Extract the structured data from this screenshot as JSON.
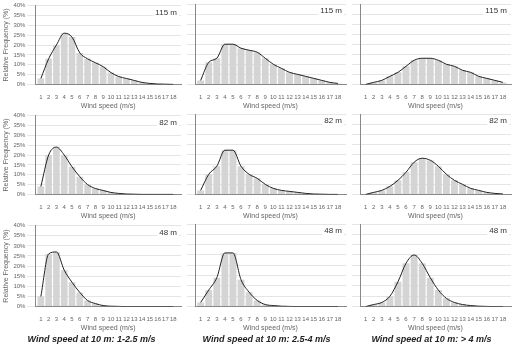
{
  "chart_data": [
    {
      "type": "bar",
      "x": [
        1,
        2,
        3,
        4,
        5,
        6,
        7,
        8,
        9,
        10,
        11,
        12,
        13,
        14,
        15,
        16,
        17,
        18
      ],
      "series": [
        {
          "type": "bar",
          "color": "#d4d4d4",
          "values": [
            3,
            13,
            20,
            26,
            24,
            16,
            13,
            11,
            9,
            6,
            4,
            3,
            2,
            1,
            0.5,
            0.2,
            0.1,
            0
          ]
        },
        {
          "type": "line",
          "color": "#222222",
          "values": [
            3,
            13,
            20,
            26,
            24,
            16,
            13,
            11,
            9,
            6,
            4,
            3,
            2,
            1,
            0.5,
            0.2,
            0.1,
            0
          ]
        }
      ],
      "xlabel": "Wind speed (m/s)",
      "ylabel": "Relative Frequency (%)",
      "annotations": [
        "115 m"
      ],
      "xlim": [
        0.3,
        19.0
      ],
      "xticks": [
        1,
        2,
        3,
        4,
        5,
        6,
        7,
        8,
        9,
        10,
        11,
        12,
        13,
        14,
        15,
        16,
        17,
        18
      ],
      "ylim": [
        0,
        40
      ],
      "yticks": [
        {
          "value": 0,
          "label": "0%"
        },
        {
          "value": 5,
          "label": "5%"
        },
        {
          "value": 10,
          "label": "10%"
        },
        {
          "value": 15,
          "label": "15%"
        },
        {
          "value": 20,
          "label": "20%"
        },
        {
          "value": 25,
          "label": "25%"
        },
        {
          "value": 30,
          "label": "30%"
        },
        {
          "value": 35,
          "label": "35%"
        },
        {
          "value": 40,
          "label": "40%"
        }
      ],
      "grid": true
    },
    {
      "type": "bar",
      "x": [
        1,
        2,
        3,
        4,
        5,
        6,
        7,
        8,
        9,
        10,
        11,
        12,
        13,
        14,
        15,
        16,
        17,
        18
      ],
      "series": [
        {
          "type": "bar",
          "color": "#d4d4d4",
          "values": [
            2,
            11,
            13,
            20,
            20,
            18,
            17,
            16,
            13,
            10,
            8,
            6,
            5,
            4,
            3,
            2,
            1,
            0.5
          ]
        },
        {
          "type": "line",
          "color": "#222222",
          "values": [
            2,
            11,
            13,
            20,
            20,
            18,
            17,
            16,
            13,
            10,
            8,
            6,
            5,
            4,
            3,
            2,
            1,
            0.5
          ]
        }
      ],
      "xlabel": "Wind speed (m/s)",
      "annotations": [
        "115 m"
      ],
      "xlim": [
        0.3,
        19.0
      ],
      "xticks": [
        1,
        2,
        3,
        4,
        5,
        6,
        7,
        8,
        9,
        10,
        11,
        12,
        13,
        14,
        15,
        16,
        17,
        18
      ],
      "ylim": [
        0,
        40
      ],
      "yticks": [
        0,
        5,
        10,
        15,
        20,
        25,
        30,
        35,
        40
      ],
      "grid": true,
      "tick_labels": "x"
    },
    {
      "type": "bar",
      "x": [
        1,
        2,
        3,
        4,
        5,
        6,
        7,
        8,
        9,
        10,
        11,
        12,
        13,
        14,
        15,
        16,
        17,
        18
      ],
      "series": [
        {
          "type": "bar",
          "color": "#d4d4d4",
          "values": [
            0,
            1,
            2,
            4,
            6,
            9,
            12,
            13,
            13,
            12,
            10,
            9,
            7,
            6,
            4,
            3,
            2,
            1
          ]
        },
        {
          "type": "line",
          "color": "#222222",
          "values": [
            0,
            1,
            2,
            4,
            6,
            9,
            12,
            13,
            13,
            12,
            10,
            9,
            7,
            6,
            4,
            3,
            2,
            1
          ]
        }
      ],
      "xlabel": "Wind speed (m/s)",
      "annotations": [
        "115 m"
      ],
      "xlim": [
        0.3,
        19.0
      ],
      "xticks": [
        1,
        2,
        3,
        4,
        5,
        6,
        7,
        8,
        9,
        10,
        11,
        12,
        13,
        14,
        15,
        16,
        17,
        18
      ],
      "ylim": [
        0,
        40
      ],
      "yticks": [
        0,
        5,
        10,
        15,
        20,
        25,
        30,
        35,
        40
      ],
      "grid": true,
      "tick_labels": "x"
    },
    {
      "type": "bar",
      "x": [
        1,
        2,
        3,
        4,
        5,
        6,
        7,
        8,
        9,
        10,
        11,
        12,
        13,
        14,
        15,
        16,
        17,
        18
      ],
      "series": [
        {
          "type": "bar",
          "color": "#d4d4d4",
          "values": [
            4,
            20,
            24,
            20,
            14,
            9,
            5,
            3,
            2,
            1,
            0.5,
            0.2,
            0.1,
            0,
            0,
            0,
            0,
            0
          ]
        },
        {
          "type": "line",
          "color": "#222222",
          "values": [
            4,
            20,
            24,
            20,
            14,
            9,
            5,
            3,
            2,
            1,
            0.5,
            0.2,
            0.1,
            0,
            0,
            0,
            0,
            0
          ]
        }
      ],
      "xlabel": "Wind speed (m/s)",
      "ylabel": "Relative Frequency (%)",
      "annotations": [
        "82 m"
      ],
      "xlim": [
        0.3,
        19.0
      ],
      "xticks": [
        1,
        2,
        3,
        4,
        5,
        6,
        7,
        8,
        9,
        10,
        11,
        12,
        13,
        14,
        15,
        16,
        17,
        18
      ],
      "ylim": [
        0,
        40
      ],
      "yticks": [
        {
          "value": 0,
          "label": "0%"
        },
        {
          "value": 5,
          "label": "5%"
        },
        {
          "value": 10,
          "label": "10%"
        },
        {
          "value": 15,
          "label": "15%"
        },
        {
          "value": 20,
          "label": "20%"
        },
        {
          "value": 25,
          "label": "25%"
        },
        {
          "value": 30,
          "label": "30%"
        },
        {
          "value": 35,
          "label": "35%"
        },
        {
          "value": 40,
          "label": "40%"
        }
      ],
      "grid": true
    },
    {
      "type": "bar",
      "x": [
        1,
        2,
        3,
        4,
        5,
        6,
        7,
        8,
        9,
        10,
        11,
        12,
        13,
        14,
        15,
        16,
        17,
        18
      ],
      "series": [
        {
          "type": "bar",
          "color": "#d4d4d4",
          "values": [
            2,
            10,
            14,
            22,
            22,
            14,
            10,
            8,
            5,
            3,
            2,
            1.5,
            1,
            0.5,
            0.2,
            0.1,
            0,
            0
          ]
        },
        {
          "type": "line",
          "color": "#222222",
          "values": [
            2,
            10,
            14,
            22,
            22,
            14,
            10,
            8,
            5,
            3,
            2,
            1.5,
            1,
            0.5,
            0.2,
            0.1,
            0,
            0
          ]
        }
      ],
      "xlabel": "Wind speed (m/s)",
      "annotations": [
        "82 m"
      ],
      "xlim": [
        0.3,
        19.0
      ],
      "xticks": [
        1,
        2,
        3,
        4,
        5,
        6,
        7,
        8,
        9,
        10,
        11,
        12,
        13,
        14,
        15,
        16,
        17,
        18
      ],
      "ylim": [
        0,
        40
      ],
      "yticks": [
        0,
        5,
        10,
        15,
        20,
        25,
        30,
        35,
        40
      ],
      "grid": true,
      "tick_labels": "x"
    },
    {
      "type": "bar",
      "x": [
        1,
        2,
        3,
        4,
        5,
        6,
        7,
        8,
        9,
        10,
        11,
        12,
        13,
        14,
        15,
        16,
        17,
        18
      ],
      "series": [
        {
          "type": "bar",
          "color": "#d4d4d4",
          "values": [
            0,
            1,
            2,
            4,
            7,
            11,
            16,
            18,
            17,
            14,
            10,
            7,
            5,
            3,
            2,
            1,
            0.5,
            0.2
          ]
        },
        {
          "type": "line",
          "color": "#222222",
          "values": [
            0,
            1,
            2,
            4,
            7,
            11,
            16,
            18,
            17,
            14,
            10,
            7,
            5,
            3,
            2,
            1,
            0.5,
            0.2
          ]
        }
      ],
      "xlabel": "Wind speed (m/s)",
      "annotations": [
        "82 m"
      ],
      "xlim": [
        0.3,
        19.0
      ],
      "xticks": [
        1,
        2,
        3,
        4,
        5,
        6,
        7,
        8,
        9,
        10,
        11,
        12,
        13,
        14,
        15,
        16,
        17,
        18
      ],
      "ylim": [
        0,
        40
      ],
      "yticks": [
        0,
        5,
        10,
        15,
        20,
        25,
        30,
        35,
        40
      ],
      "grid": true,
      "tick_labels": "x"
    },
    {
      "type": "bar",
      "x": [
        1,
        2,
        3,
        4,
        5,
        6,
        7,
        8,
        9,
        10,
        11,
        12,
        13,
        14,
        15,
        16,
        17,
        18
      ],
      "series": [
        {
          "type": "bar",
          "color": "#d4d4d4",
          "values": [
            5,
            26,
            27,
            18,
            12,
            7,
            3,
            1.5,
            0.5,
            0.2,
            0.1,
            0,
            0,
            0,
            0,
            0,
            0,
            0
          ]
        },
        {
          "type": "line",
          "color": "#222222",
          "values": [
            5,
            26,
            27,
            18,
            12,
            7,
            3,
            1.5,
            0.5,
            0.2,
            0.1,
            0,
            0,
            0,
            0,
            0,
            0,
            0
          ]
        }
      ],
      "xlabel": "Wind speed (m/s)",
      "ylabel": "Relative Frequency (%)",
      "annotations": [
        "48 m"
      ],
      "subtitle": "Wind speed at 10 m: 1-2.5 m/s",
      "xlim": [
        0.3,
        19.0
      ],
      "xticks": [
        1,
        2,
        3,
        4,
        5,
        6,
        7,
        8,
        9,
        10,
        11,
        12,
        13,
        14,
        15,
        16,
        17,
        18
      ],
      "ylim": [
        0,
        40
      ],
      "yticks": [
        {
          "value": 0,
          "label": "0%"
        },
        {
          "value": 5,
          "label": "5%"
        },
        {
          "value": 10,
          "label": "10%"
        },
        {
          "value": 15,
          "label": "15%"
        },
        {
          "value": 20,
          "label": "20%"
        },
        {
          "value": 25,
          "label": "25%"
        },
        {
          "value": 30,
          "label": "30%"
        },
        {
          "value": 35,
          "label": "35%"
        },
        {
          "value": 40,
          "label": "40%"
        }
      ],
      "grid": true
    },
    {
      "type": "bar",
      "x": [
        1,
        2,
        3,
        4,
        5,
        6,
        7,
        8,
        9,
        10,
        11,
        12,
        13,
        14,
        15,
        16,
        17,
        18
      ],
      "series": [
        {
          "type": "bar",
          "color": "#d4d4d4",
          "values": [
            2,
            8,
            14,
            26,
            26,
            13,
            7,
            3,
            1,
            0.5,
            0.2,
            0.1,
            0,
            0,
            0,
            0,
            0,
            0
          ]
        },
        {
          "type": "line",
          "color": "#222222",
          "values": [
            2,
            8,
            14,
            26,
            26,
            13,
            7,
            3,
            1,
            0.5,
            0.2,
            0.1,
            0,
            0,
            0,
            0,
            0,
            0
          ]
        }
      ],
      "xlabel": "Wind speed (m/s)",
      "annotations": [
        "48 m"
      ],
      "subtitle": "Wind speed at 10 m: 2.5-4 m/s",
      "xlim": [
        0.3,
        19.0
      ],
      "xticks": [
        1,
        2,
        3,
        4,
        5,
        6,
        7,
        8,
        9,
        10,
        11,
        12,
        13,
        14,
        15,
        16,
        17,
        18
      ],
      "ylim": [
        0,
        40
      ],
      "yticks": [
        0,
        5,
        10,
        15,
        20,
        25,
        30,
        35,
        40
      ],
      "grid": true,
      "tick_labels": "x"
    },
    {
      "type": "bar",
      "x": [
        1,
        2,
        3,
        4,
        5,
        6,
        7,
        8,
        9,
        10,
        11,
        12,
        13,
        14,
        15,
        16,
        17,
        18
      ],
      "series": [
        {
          "type": "bar",
          "color": "#d4d4d4",
          "values": [
            0,
            1,
            2,
            5,
            12,
            21,
            25,
            21,
            14,
            8,
            4,
            2,
            1,
            0.5,
            0.2,
            0.1,
            0,
            0
          ]
        },
        {
          "type": "line",
          "color": "#222222",
          "values": [
            0,
            1,
            2,
            5,
            12,
            21,
            25,
            21,
            14,
            8,
            4,
            2,
            1,
            0.5,
            0.2,
            0.1,
            0,
            0
          ]
        }
      ],
      "xlabel": "Wind speed (m/s)",
      "annotations": [
        "48 m"
      ],
      "subtitle": "Wind speed at 10 m: > 4 m/s",
      "xlim": [
        0.3,
        19.0
      ],
      "xticks": [
        1,
        2,
        3,
        4,
        5,
        6,
        7,
        8,
        9,
        10,
        11,
        12,
        13,
        14,
        15,
        16,
        17,
        18
      ],
      "ylim": [
        0,
        40
      ],
      "yticks": [
        0,
        5,
        10,
        15,
        20,
        25,
        30,
        35,
        40
      ],
      "grid": true,
      "tick_labels": "x"
    }
  ]
}
